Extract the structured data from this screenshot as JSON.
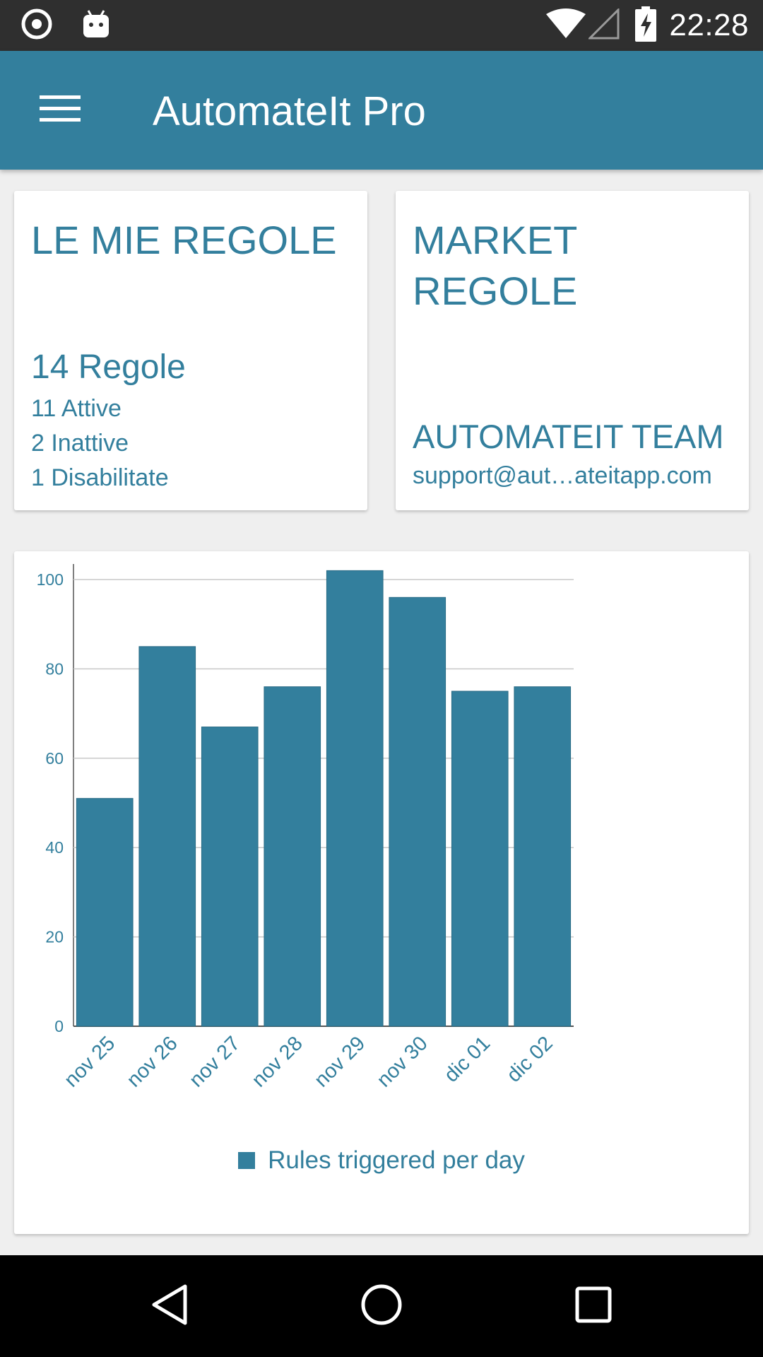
{
  "status_bar": {
    "time": "22:28",
    "icons": [
      "sync-circle-icon",
      "android-icon",
      "wifi-icon",
      "signal-icon",
      "battery-charging-icon"
    ]
  },
  "app_bar": {
    "title": "AutomateIt Pro",
    "menu_icon": "hamburger-menu-icon"
  },
  "my_rules_card": {
    "title": "LE MIE REGOLE",
    "total": "14 Regole",
    "active": "11 Attive",
    "inactive": "2 Inattive",
    "disabled": "1 Disabilitate"
  },
  "market_card": {
    "title": "MARKET REGOLE",
    "team": "AUTOMATEIT TEAM",
    "email": "support@aut…ateitapp.com"
  },
  "colors": {
    "accent": "#337f9d",
    "background": "#efefef",
    "status_bar": "#2f2f2f",
    "nav_bar": "#000000"
  },
  "chart_data": {
    "type": "bar",
    "categories": [
      "nov 25",
      "nov 26",
      "nov 27",
      "nov 28",
      "nov 29",
      "nov 30",
      "dic 01",
      "dic 02"
    ],
    "series": [
      {
        "name": "Rules triggered per day",
        "values": [
          51,
          85,
          67,
          76,
          102,
          96,
          75,
          76
        ]
      }
    ],
    "yticks": [
      "0",
      "20",
      "40",
      "60",
      "80",
      "100"
    ],
    "ylim": [
      0,
      100
    ],
    "grid": true,
    "legend": "bottom-center"
  },
  "nav_bar": {
    "icons": [
      "back-icon",
      "home-icon",
      "recents-icon"
    ]
  }
}
